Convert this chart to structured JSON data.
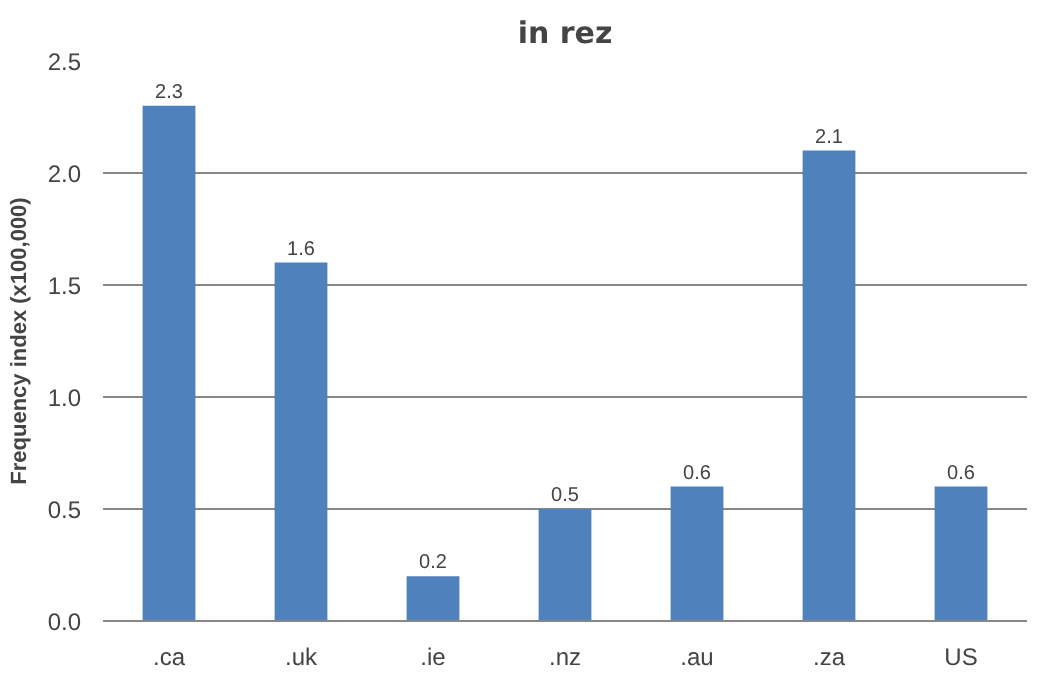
{
  "chart_data": {
    "type": "bar",
    "title": "in rez",
    "ylabel": "Frequency index (x100,000)",
    "categories": [
      ".ca",
      ".uk",
      ".ie",
      ".nz",
      ".au",
      ".za",
      "US"
    ],
    "values": [
      2.3,
      1.6,
      0.2,
      0.5,
      0.6,
      2.1,
      0.6
    ],
    "color": "#4f81bd",
    "ylim": [
      0,
      2.5
    ],
    "yticks": [
      {
        "value": 0,
        "label": "0.0"
      },
      {
        "value": 0.5,
        "label": "0.5"
      },
      {
        "value": 1,
        "label": "1.0"
      },
      {
        "value": 1.5,
        "label": "1.5"
      },
      {
        "value": 2,
        "label": "2.0"
      },
      {
        "value": 2.5,
        "label": "2.5"
      }
    ],
    "grid": "y",
    "data_labels": true
  }
}
